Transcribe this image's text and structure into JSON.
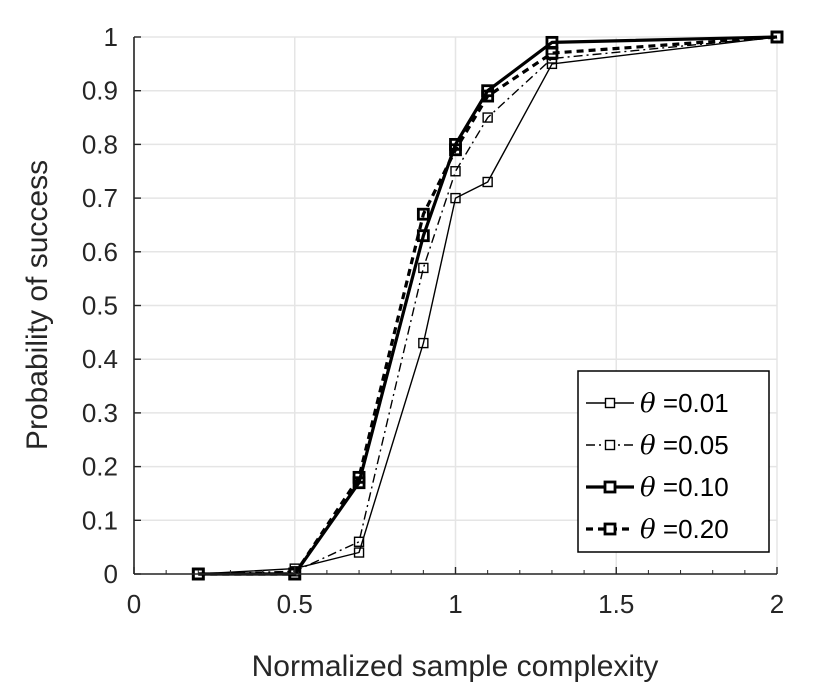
{
  "chart_data": {
    "type": "line",
    "title": "",
    "xlabel": "Normalized sample complexity",
    "ylabel": "Probability of success",
    "xlim": [
      0,
      2
    ],
    "ylim": [
      0,
      1
    ],
    "xticks": [
      0,
      0.5,
      1,
      1.5,
      2
    ],
    "xtick_labels": [
      "0",
      "0.5",
      "1",
      "1.5",
      "2"
    ],
    "yticks": [
      0,
      0.1,
      0.2,
      0.3,
      0.4,
      0.5,
      0.6,
      0.7,
      0.8,
      0.9,
      1
    ],
    "ytick_labels": [
      "0",
      "0.1",
      "0.2",
      "0.3",
      "0.4",
      "0.5",
      "0.6",
      "0.7",
      "0.8",
      "0.9",
      "1"
    ],
    "grid": true,
    "legend_position": "bottom-right",
    "marker": "square",
    "x": [
      0.2,
      0.5,
      0.7,
      0.9,
      1.0,
      1.1,
      1.3,
      2.0
    ],
    "series": [
      {
        "name": "θ =0.01",
        "symbol": "θ",
        "value_label": " =0.01",
        "style": "solid",
        "weight": "thin",
        "values": [
          0,
          0.01,
          0.04,
          0.43,
          0.7,
          0.73,
          0.95,
          1.0
        ]
      },
      {
        "name": "θ =0.05",
        "symbol": "θ",
        "value_label": " =0.05",
        "style": "dashdot",
        "weight": "thin",
        "values": [
          0,
          0.005,
          0.06,
          0.57,
          0.75,
          0.85,
          0.96,
          1.0
        ]
      },
      {
        "name": "θ =0.10",
        "symbol": "θ",
        "value_label": " =0.10",
        "style": "solid",
        "weight": "thick",
        "values": [
          0,
          0,
          0.17,
          0.63,
          0.8,
          0.9,
          0.99,
          1.0
        ]
      },
      {
        "name": "θ =0.20",
        "symbol": "θ",
        "value_label": " =0.20",
        "style": "dashed",
        "weight": "thick",
        "values": [
          0,
          0,
          0.18,
          0.67,
          0.79,
          0.89,
          0.97,
          1.0
        ]
      }
    ],
    "colors": {
      "line": "#000000",
      "axis": "#262626",
      "grid": "#e5e5e5",
      "background": "#ffffff"
    }
  }
}
